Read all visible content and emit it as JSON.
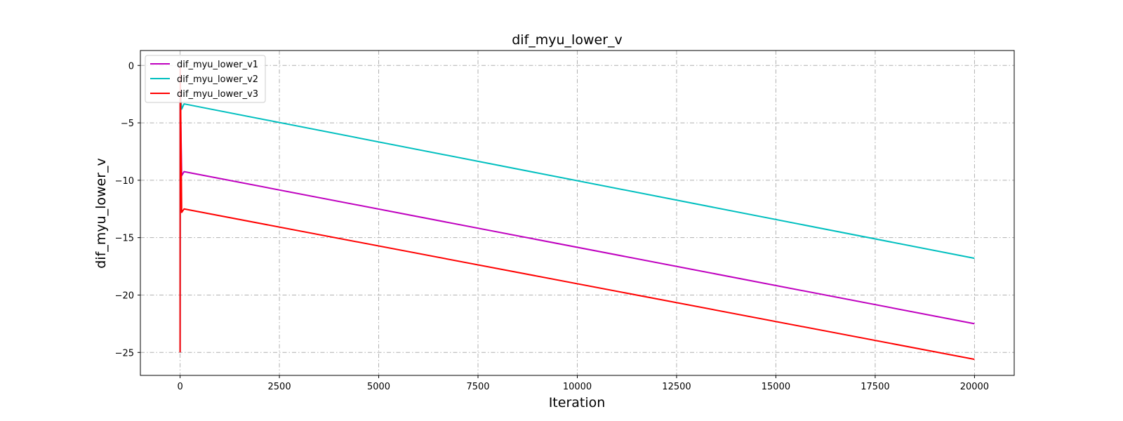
{
  "chart_data": {
    "type": "line",
    "title": "dif_myu_lower_v",
    "xlabel": "Iteration",
    "ylabel": "dif_myu_lower_v",
    "xlim": [
      -1000,
      21000
    ],
    "ylim": [
      -27,
      1.3
    ],
    "xticks": [
      0,
      2500,
      5000,
      7500,
      10000,
      12500,
      15000,
      17500,
      20000
    ],
    "yticks": [
      0,
      -5,
      -10,
      -15,
      -20,
      -25
    ],
    "grid": true,
    "legend_position": "top-left",
    "series": [
      {
        "name": "dif_myu_lower_v1",
        "color": "#bf00bf",
        "points": [
          [
            0,
            -25
          ],
          [
            3,
            -3
          ],
          [
            10,
            -3.5
          ],
          [
            40,
            -9.6
          ],
          [
            100,
            -9.25
          ],
          [
            20000,
            -22.5
          ]
        ]
      },
      {
        "name": "dif_myu_lower_v2",
        "color": "#00bfbf",
        "points": [
          [
            0,
            -25
          ],
          [
            3,
            -3
          ],
          [
            10,
            -2.5
          ],
          [
            40,
            -3.8
          ],
          [
            100,
            -3.35
          ],
          [
            20000,
            -16.8
          ]
        ]
      },
      {
        "name": "dif_myu_lower_v3",
        "color": "#ff0000",
        "points": [
          [
            0,
            -25
          ],
          [
            3,
            -0.2
          ],
          [
            10,
            -2
          ],
          [
            40,
            -12.8
          ],
          [
            100,
            -12.5
          ],
          [
            20000,
            -25.6
          ]
        ]
      }
    ]
  }
}
